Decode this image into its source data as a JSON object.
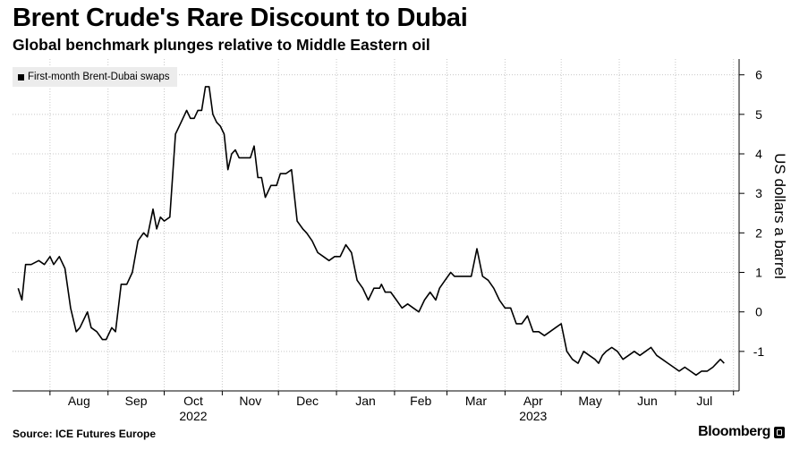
{
  "header": {
    "title": "Brent Crude's Rare Discount to Dubai",
    "subtitle": "Global benchmark plunges relative to Middle Eastern oil"
  },
  "footer": {
    "source": "Source: ICE Futures Europe",
    "brand": "Bloomberg"
  },
  "chart_data": {
    "type": "line",
    "ylabel": "US dollars a barrel",
    "ylim": [
      -2,
      6.4
    ],
    "yticks": [
      -1,
      0,
      1,
      2,
      3,
      4,
      5,
      6
    ],
    "y_axis_side": "right",
    "grid": true,
    "legend_placement": "top-left",
    "x_month_labels": [
      "Aug",
      "Sep",
      "Oct",
      "Nov",
      "Dec",
      "Jan",
      "Feb",
      "Mar",
      "Apr",
      "May",
      "Jun",
      "Jul"
    ],
    "x_year_labels": [
      {
        "label": "2022",
        "under": "Oct"
      },
      {
        "label": "2023",
        "under": "Apr"
      }
    ],
    "series": [
      {
        "name": "First-month Brent-Dubai swaps",
        "color": "#000000",
        "x": [
          "2022-07-15",
          "2022-07-17",
          "2022-07-19",
          "2022-07-22",
          "2022-07-26",
          "2022-07-29",
          "2022-08-01",
          "2022-08-03",
          "2022-08-06",
          "2022-08-09",
          "2022-08-12",
          "2022-08-15",
          "2022-08-17",
          "2022-08-19",
          "2022-08-21",
          "2022-08-23",
          "2022-08-26",
          "2022-08-29",
          "2022-08-31",
          "2022-09-03",
          "2022-09-05",
          "2022-09-08",
          "2022-09-11",
          "2022-09-14",
          "2022-09-17",
          "2022-09-20",
          "2022-09-22",
          "2022-09-25",
          "2022-09-27",
          "2022-09-29",
          "2022-10-01",
          "2022-10-04",
          "2022-10-07",
          "2022-10-10",
          "2022-10-13",
          "2022-10-15",
          "2022-10-17",
          "2022-10-19",
          "2022-10-21",
          "2022-10-23",
          "2022-10-25",
          "2022-10-27",
          "2022-10-29",
          "2022-10-31",
          "2022-11-02",
          "2022-11-04",
          "2022-11-06",
          "2022-11-08",
          "2022-11-10",
          "2022-11-13",
          "2022-11-16",
          "2022-11-18",
          "2022-11-20",
          "2022-11-22",
          "2022-11-24",
          "2022-11-27",
          "2022-11-30",
          "2022-12-02",
          "2022-12-05",
          "2022-12-08",
          "2022-12-11",
          "2022-12-14",
          "2022-12-16",
          "2022-12-19",
          "2022-12-22",
          "2022-12-25",
          "2022-12-28",
          "2022-12-31",
          "2023-01-03",
          "2023-01-06",
          "2023-01-09",
          "2023-01-12",
          "2023-01-15",
          "2023-01-18",
          "2023-01-21",
          "2023-01-24",
          "2023-01-25",
          "2023-01-27",
          "2023-01-30",
          "2023-02-02",
          "2023-02-05",
          "2023-02-08",
          "2023-02-11",
          "2023-02-14",
          "2023-02-17",
          "2023-02-20",
          "2023-02-23",
          "2023-02-25",
          "2023-02-28",
          "2023-03-03",
          "2023-03-05",
          "2023-03-08",
          "2023-03-11",
          "2023-03-14",
          "2023-03-17",
          "2023-03-20",
          "2023-03-23",
          "2023-03-26",
          "2023-03-29",
          "2023-04-01",
          "2023-04-04",
          "2023-04-07",
          "2023-04-10",
          "2023-04-13",
          "2023-04-16",
          "2023-04-19",
          "2023-04-22",
          "2023-04-25",
          "2023-04-28",
          "2023-05-01",
          "2023-05-04",
          "2023-05-07",
          "2023-05-10",
          "2023-05-13",
          "2023-05-16",
          "2023-05-19",
          "2023-05-21",
          "2023-05-23",
          "2023-05-25",
          "2023-05-28",
          "2023-05-31",
          "2023-06-03",
          "2023-06-06",
          "2023-06-09",
          "2023-06-12",
          "2023-06-15",
          "2023-06-18",
          "2023-06-21",
          "2023-06-24",
          "2023-06-27",
          "2023-06-30",
          "2023-07-03",
          "2023-07-06",
          "2023-07-09",
          "2023-07-12",
          "2023-07-15",
          "2023-07-18",
          "2023-07-21",
          "2023-07-23",
          "2023-07-25",
          "2023-07-27"
        ],
        "values": [
          0.6,
          0.3,
          1.2,
          1.2,
          1.3,
          1.2,
          1.4,
          1.2,
          1.4,
          1.1,
          0.1,
          -0.5,
          -0.4,
          -0.2,
          0.0,
          -0.4,
          -0.5,
          -0.7,
          -0.7,
          -0.4,
          -0.5,
          0.7,
          0.7,
          1.0,
          1.8,
          2.0,
          1.9,
          2.6,
          2.1,
          2.4,
          2.3,
          2.4,
          4.5,
          4.8,
          5.1,
          4.9,
          4.9,
          5.1,
          5.1,
          5.7,
          5.7,
          5.0,
          4.8,
          4.7,
          4.5,
          3.6,
          4.0,
          4.1,
          3.9,
          3.9,
          3.9,
          4.2,
          3.4,
          3.4,
          2.9,
          3.2,
          3.2,
          3.5,
          3.5,
          3.6,
          2.3,
          2.1,
          2.0,
          1.8,
          1.5,
          1.4,
          1.3,
          1.4,
          1.4,
          1.7,
          1.5,
          0.8,
          0.6,
          0.3,
          0.6,
          0.6,
          0.7,
          0.5,
          0.5,
          0.3,
          0.1,
          0.2,
          0.1,
          0.0,
          0.3,
          0.5,
          0.3,
          0.6,
          0.8,
          1.0,
          0.9,
          0.9,
          0.9,
          0.9,
          1.6,
          0.9,
          0.8,
          0.6,
          0.3,
          0.1,
          0.1,
          -0.3,
          -0.3,
          -0.1,
          -0.5,
          -0.5,
          -0.6,
          -0.5,
          -0.4,
          -0.3,
          -1.0,
          -1.2,
          -1.3,
          -1.0,
          -1.1,
          -1.2,
          -1.3,
          -1.1,
          -1.0,
          -0.9,
          -1.0,
          -1.2,
          -1.1,
          -1.0,
          -1.1,
          -1.0,
          -0.9,
          -1.1,
          -1.2,
          -1.3,
          -1.4,
          -1.5,
          -1.4,
          -1.5,
          -1.6,
          -1.5,
          -1.5,
          -1.4,
          -1.3,
          -1.2,
          -1.3
        ]
      }
    ]
  }
}
